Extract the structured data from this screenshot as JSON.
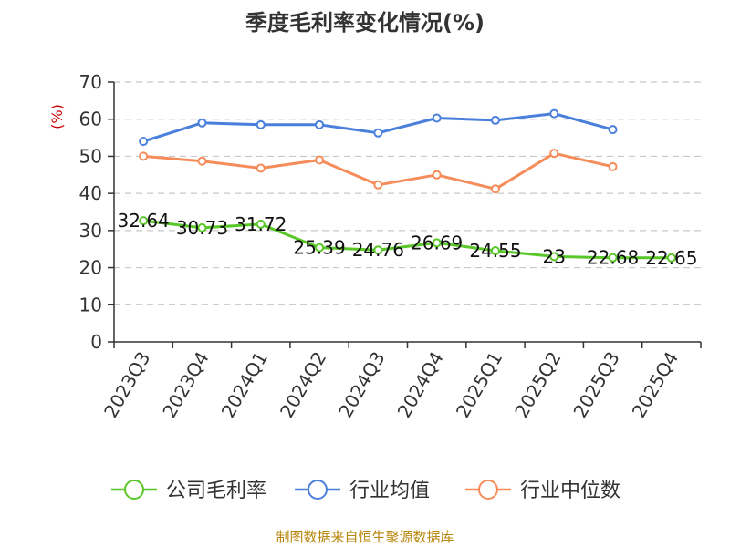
{
  "title": "季度毛利率变化情况(%)",
  "source": "制图数据来自恒生聚源数据库",
  "colors": {
    "unit": "#cc0000",
    "source": "#b8860b",
    "grid": "#c8c8c8",
    "axis": "#333333"
  },
  "chart_data": {
    "type": "line",
    "title": "季度毛利率变化情况(%)",
    "ylabel": "(%)",
    "xlabel": "",
    "ylim": [
      0,
      70
    ],
    "yticks": [
      0,
      10,
      20,
      30,
      40,
      50,
      60,
      70
    ],
    "grid": true,
    "legend_position": "bottom",
    "categories": [
      "2023Q3",
      "2023Q4",
      "2024Q1",
      "2024Q2",
      "2024Q3",
      "2024Q4",
      "2025Q1",
      "2025Q2",
      "2025Q3",
      "2025Q4"
    ],
    "series": [
      {
        "name": "公司毛利率",
        "color": "#5ac728",
        "values": [
          32.64,
          30.73,
          31.72,
          25.39,
          24.76,
          26.69,
          24.55,
          23,
          22.68,
          22.65
        ],
        "labels": [
          "32.64",
          "30.73",
          "31.72",
          "25.39",
          "24.76",
          "26.69",
          "24.55",
          "23",
          "22.68",
          "22.65"
        ]
      },
      {
        "name": "行业均值",
        "color": "#4a7fdc",
        "values": [
          54,
          59,
          58.5,
          58.5,
          56.3,
          60.3,
          59.7,
          61.5,
          57.2,
          null
        ]
      },
      {
        "name": "行业中位数",
        "color": "#f58c5a",
        "values": [
          50,
          48.7,
          46.8,
          49,
          42.3,
          45,
          41.2,
          50.8,
          47.2,
          null
        ]
      }
    ]
  }
}
